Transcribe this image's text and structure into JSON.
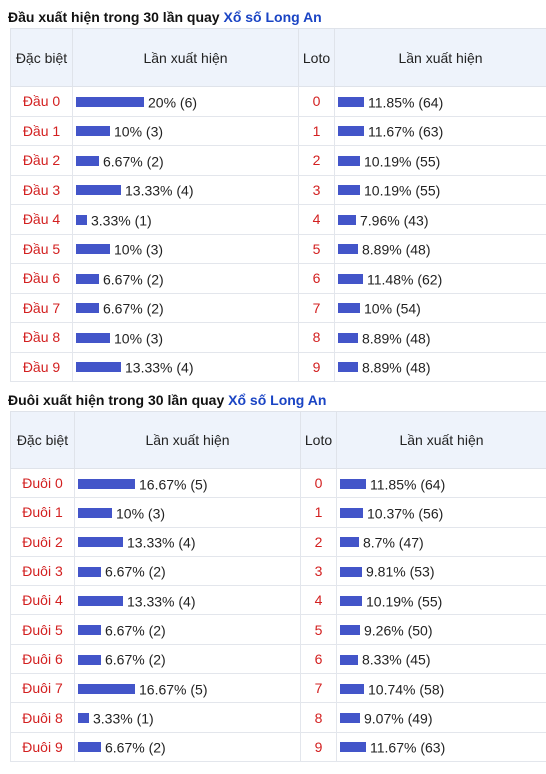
{
  "head_section": {
    "title_prefix": "Đầu xuất hiện trong 30 lần quay ",
    "title_link": "Xổ số Long An",
    "col_special": "Đặc biệt",
    "col_occurrence": "Lần xuất hiện",
    "col_loto": "Loto",
    "col_occurrence2": "Lần xuất hiện",
    "rows": [
      {
        "label": "Đầu 0",
        "pct": 20,
        "value": "20% (6)",
        "loto": "0",
        "loto_pct": 11.85,
        "loto_value": "11.85% (64)"
      },
      {
        "label": "Đầu 1",
        "pct": 10,
        "value": "10% (3)",
        "loto": "1",
        "loto_pct": 11.67,
        "loto_value": "11.67% (63)"
      },
      {
        "label": "Đầu 2",
        "pct": 6.67,
        "value": "6.67% (2)",
        "loto": "2",
        "loto_pct": 10.19,
        "loto_value": "10.19% (55)"
      },
      {
        "label": "Đầu 3",
        "pct": 13.33,
        "value": "13.33% (4)",
        "loto": "3",
        "loto_pct": 10.19,
        "loto_value": "10.19% (55)"
      },
      {
        "label": "Đầu 4",
        "pct": 3.33,
        "value": "3.33% (1)",
        "loto": "4",
        "loto_pct": 7.96,
        "loto_value": "7.96% (43)"
      },
      {
        "label": "Đầu 5",
        "pct": 10,
        "value": "10% (3)",
        "loto": "5",
        "loto_pct": 8.89,
        "loto_value": "8.89% (48)"
      },
      {
        "label": "Đầu 6",
        "pct": 6.67,
        "value": "6.67% (2)",
        "loto": "6",
        "loto_pct": 11.48,
        "loto_value": "11.48% (62)"
      },
      {
        "label": "Đầu 7",
        "pct": 6.67,
        "value": "6.67% (2)",
        "loto": "7",
        "loto_pct": 10,
        "loto_value": "10% (54)"
      },
      {
        "label": "Đầu 8",
        "pct": 10,
        "value": "10% (3)",
        "loto": "8",
        "loto_pct": 8.89,
        "loto_value": "8.89% (48)"
      },
      {
        "label": "Đầu 9",
        "pct": 13.33,
        "value": "13.33% (4)",
        "loto": "9",
        "loto_pct": 8.89,
        "loto_value": "8.89% (48)"
      }
    ]
  },
  "tail_section": {
    "title_prefix": "Đuôi xuất hiện trong 30 lần quay ",
    "title_link": "Xổ số Long An",
    "col_special": "Đặc biệt",
    "col_occurrence": "Lần xuất hiện",
    "col_loto": "Loto",
    "col_occurrence2": "Lần xuất hiện",
    "rows": [
      {
        "label": "Đuôi 0",
        "pct": 16.67,
        "value": "16.67% (5)",
        "loto": "0",
        "loto_pct": 11.85,
        "loto_value": "11.85% (64)"
      },
      {
        "label": "Đuôi 1",
        "pct": 10,
        "value": "10% (3)",
        "loto": "1",
        "loto_pct": 10.37,
        "loto_value": "10.37% (56)"
      },
      {
        "label": "Đuôi 2",
        "pct": 13.33,
        "value": "13.33% (4)",
        "loto": "2",
        "loto_pct": 8.7,
        "loto_value": "8.7% (47)"
      },
      {
        "label": "Đuôi 3",
        "pct": 6.67,
        "value": "6.67% (2)",
        "loto": "3",
        "loto_pct": 9.81,
        "loto_value": "9.81% (53)"
      },
      {
        "label": "Đuôi 4",
        "pct": 13.33,
        "value": "13.33% (4)",
        "loto": "4",
        "loto_pct": 10.19,
        "loto_value": "10.19% (55)"
      },
      {
        "label": "Đuôi 5",
        "pct": 6.67,
        "value": "6.67% (2)",
        "loto": "5",
        "loto_pct": 9.26,
        "loto_value": "9.26% (50)"
      },
      {
        "label": "Đuôi 6",
        "pct": 6.67,
        "value": "6.67% (2)",
        "loto": "6",
        "loto_pct": 8.33,
        "loto_value": "8.33% (45)"
      },
      {
        "label": "Đuôi 7",
        "pct": 16.67,
        "value": "16.67% (5)",
        "loto": "7",
        "loto_pct": 10.74,
        "loto_value": "10.74% (58)"
      },
      {
        "label": "Đuôi 8",
        "pct": 3.33,
        "value": "3.33% (1)",
        "loto": "8",
        "loto_pct": 9.07,
        "loto_value": "9.07% (49)"
      },
      {
        "label": "Đuôi 9",
        "pct": 6.67,
        "value": "6.67% (2)",
        "loto": "9",
        "loto_pct": 11.67,
        "loto_value": "11.67% (63)"
      }
    ]
  },
  "colors": {
    "bar": "#4355c9",
    "label_red": "#d32020",
    "link_blue": "#1a44c4",
    "header_bg": "#eef3fb"
  }
}
